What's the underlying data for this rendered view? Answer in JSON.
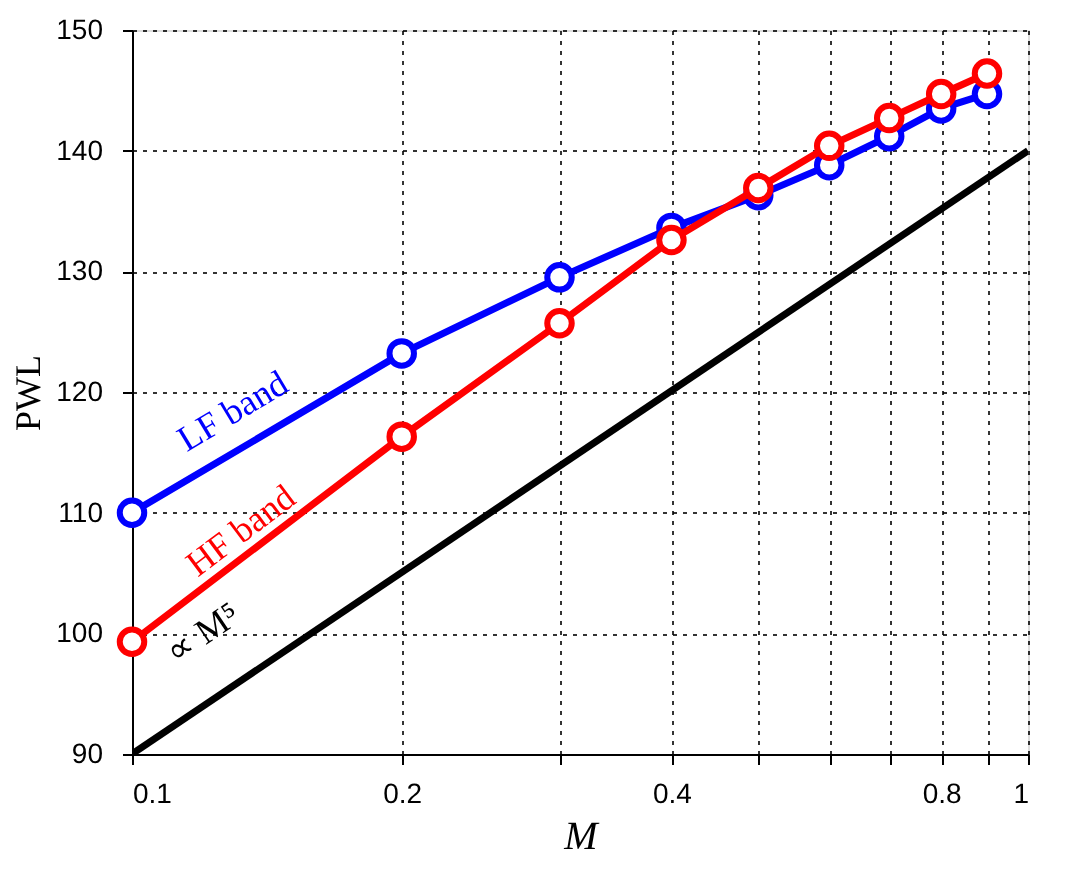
{
  "chart_data": {
    "type": "line",
    "xlabel": "M",
    "ylabel": "PWL",
    "log": "x",
    "grid": true,
    "line_style": "solid",
    "xlim": [
      0.1,
      1
    ],
    "ylim": [
      90,
      150
    ],
    "xticks": [
      0.1,
      0.2,
      {
        "value": 0.3,
        "label": null
      },
      0.4,
      {
        "value": 0.5,
        "label": null
      },
      {
        "value": 0.6,
        "label": null
      },
      {
        "value": 0.7,
        "label": null
      },
      0.8,
      {
        "value": 0.9,
        "label": null
      },
      1
    ],
    "yticks": [
      90,
      100,
      110,
      120,
      130,
      140,
      150
    ],
    "x": [
      0.1,
      0.2,
      0.3,
      0.4,
      0.5,
      0.6,
      0.7,
      0.8,
      0.9
    ],
    "series": [
      {
        "name": "LF band",
        "color": "#0000ff",
        "marker": "circle",
        "values": [
          110,
          123.2,
          129.5,
          133.6,
          136.3,
          138.8,
          141.2,
          143.5,
          144.7
        ]
      },
      {
        "name": "HF band",
        "color": "#ff0000",
        "marker": "circle",
        "values": [
          99.3,
          116.3,
          125.7,
          132.6,
          136.9,
          140.4,
          142.7,
          144.7,
          146.4
        ]
      },
      {
        "name": "∝ M⁵",
        "color": "#000000",
        "marker": "none",
        "x": [
          0.1,
          1
        ],
        "values": [
          90,
          140
        ]
      }
    ]
  }
}
